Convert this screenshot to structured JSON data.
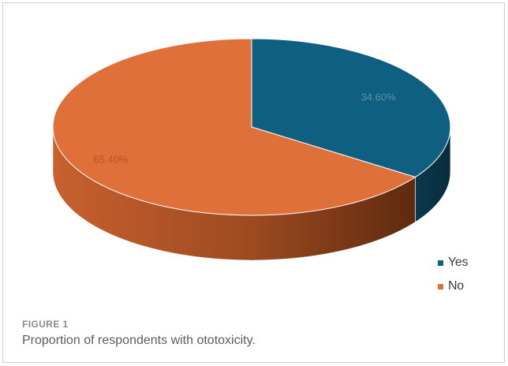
{
  "chart_data": {
    "type": "pie",
    "style": "3d",
    "categories": [
      "Yes",
      "No"
    ],
    "values": [
      34.6,
      65.4
    ],
    "data_labels": [
      "34.60%",
      "65.40%"
    ],
    "colors": [
      "#0f5f80",
      "#e0703a"
    ],
    "legend": {
      "position": "right-bottom",
      "entries": [
        "Yes",
        "No"
      ]
    }
  },
  "figure": {
    "number": "FIGURE 1",
    "caption": "Proportion of respondents with ototoxicity."
  }
}
